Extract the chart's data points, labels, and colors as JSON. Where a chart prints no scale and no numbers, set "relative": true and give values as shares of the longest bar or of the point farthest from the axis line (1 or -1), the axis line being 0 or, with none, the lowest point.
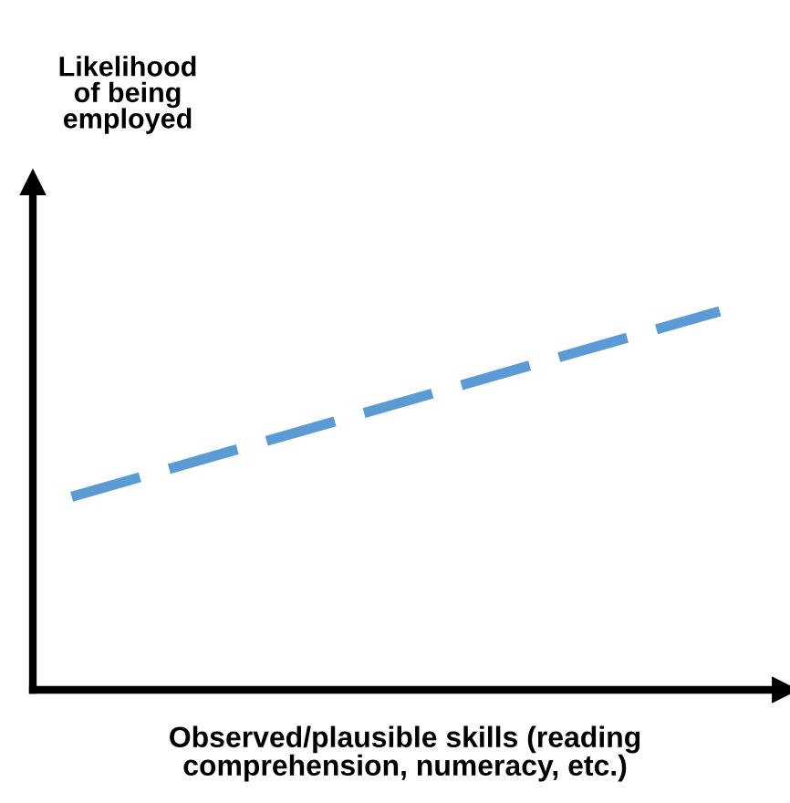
{
  "chart_data": {
    "type": "line",
    "relative": true,
    "annotations": [
      "Likelihood\nof being\nemployed"
    ],
    "xlabel": "Observed/plausible skills (reading\ncomprehension, numeracy, etc.)",
    "categories": [
      null,
      null
    ],
    "series": [
      {
        "color": "#5b9bd5",
        "values": [
          0.51,
          1
        ]
      }
    ],
    "line_style": "dashed",
    "marker": "none",
    "legend": false
  }
}
